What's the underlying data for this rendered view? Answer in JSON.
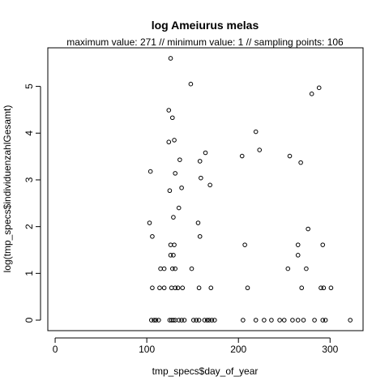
{
  "chart_data": {
    "type": "scatter",
    "title": "log Ameiurus melas",
    "subtitle": "maximum value: 271  //  minimum value: 1  // sampling points: 106",
    "xlabel": "tmp_specs$day_of_year",
    "ylabel": "log(tmp_specs$individuenzahlGesamt)",
    "xlim": [
      -8,
      336
    ],
    "ylim": [
      -0.225,
      5.825
    ],
    "x_ticks": [
      0,
      100,
      200,
      300
    ],
    "y_ticks": [
      0,
      1,
      2,
      3,
      4,
      5
    ],
    "grid": false,
    "legend": "none",
    "points": [
      [
        126,
        5.6
      ],
      [
        148,
        5.05
      ],
      [
        288,
        4.97
      ],
      [
        280,
        4.84
      ],
      [
        124,
        4.49
      ],
      [
        128,
        4.33
      ],
      [
        219,
        4.03
      ],
      [
        130,
        3.85
      ],
      [
        124,
        3.81
      ],
      [
        223,
        3.64
      ],
      [
        164,
        3.58
      ],
      [
        204,
        3.51
      ],
      [
        256,
        3.51
      ],
      [
        136,
        3.43
      ],
      [
        158,
        3.4
      ],
      [
        268,
        3.37
      ],
      [
        104,
        3.18
      ],
      [
        131,
        3.14
      ],
      [
        159,
        3.04
      ],
      [
        169,
        2.89
      ],
      [
        138,
        2.83
      ],
      [
        125,
        2.77
      ],
      [
        135,
        2.4
      ],
      [
        129,
        2.2
      ],
      [
        103,
        2.08
      ],
      [
        156,
        2.08
      ],
      [
        276,
        1.95
      ],
      [
        106,
        1.79
      ],
      [
        158,
        1.79
      ],
      [
        126,
        1.61
      ],
      [
        130,
        1.61
      ],
      [
        207,
        1.61
      ],
      [
        265,
        1.61
      ],
      [
        292,
        1.61
      ],
      [
        126,
        1.39
      ],
      [
        129,
        1.39
      ],
      [
        265,
        1.39
      ],
      [
        115,
        1.1
      ],
      [
        119,
        1.1
      ],
      [
        128,
        1.1
      ],
      [
        131,
        1.1
      ],
      [
        149,
        1.1
      ],
      [
        254,
        1.1
      ],
      [
        274,
        1.1
      ],
      [
        106,
        0.69
      ],
      [
        114,
        0.69
      ],
      [
        119,
        0.69
      ],
      [
        127,
        0.69
      ],
      [
        131,
        0.69
      ],
      [
        134,
        0.69
      ],
      [
        139,
        0.69
      ],
      [
        157,
        0.69
      ],
      [
        170,
        0.69
      ],
      [
        210,
        0.69
      ],
      [
        269,
        0.69
      ],
      [
        290,
        0.69
      ],
      [
        293,
        0.69
      ],
      [
        301,
        0.69
      ],
      [
        105,
        0
      ],
      [
        108,
        0
      ],
      [
        110,
        0
      ],
      [
        113,
        0
      ],
      [
        125,
        0
      ],
      [
        127,
        0
      ],
      [
        129,
        0
      ],
      [
        131,
        0
      ],
      [
        135,
        0
      ],
      [
        138,
        0
      ],
      [
        141,
        0
      ],
      [
        151,
        0
      ],
      [
        154,
        0
      ],
      [
        157,
        0
      ],
      [
        163,
        0
      ],
      [
        166,
        0
      ],
      [
        168,
        0
      ],
      [
        171,
        0
      ],
      [
        174,
        0
      ],
      [
        205,
        0
      ],
      [
        219,
        0
      ],
      [
        228,
        0
      ],
      [
        236,
        0
      ],
      [
        245,
        0
      ],
      [
        250,
        0
      ],
      [
        259,
        0
      ],
      [
        265,
        0
      ],
      [
        271,
        0
      ],
      [
        283,
        0
      ],
      [
        292,
        0
      ],
      [
        295,
        0
      ],
      [
        322,
        0
      ]
    ]
  }
}
